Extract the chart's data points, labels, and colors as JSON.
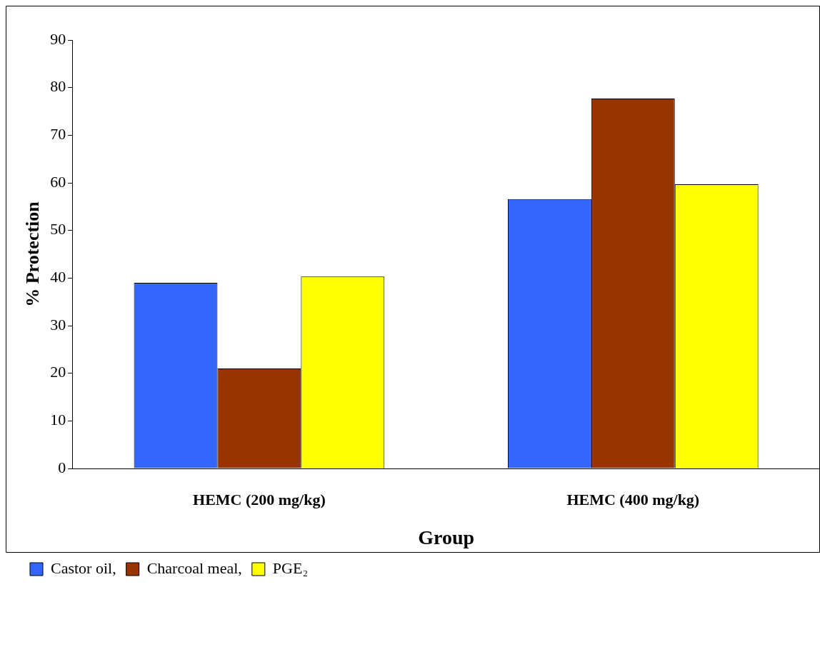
{
  "chart_data": {
    "type": "bar",
    "xlabel": "Group",
    "ylabel": "% Protection",
    "categories": [
      "HEMC (200 mg/kg)",
      "HEMC (400 mg/kg)"
    ],
    "series": [
      {
        "name": "Castor oil,",
        "color": "#3366ff",
        "values": [
          39,
          56.6
        ]
      },
      {
        "name": "Charcoal meal,",
        "color": "#993300",
        "values": [
          21,
          77.7
        ]
      },
      {
        "name": "PGE₂",
        "color": "#ffff00",
        "values": [
          40.3,
          59.7
        ]
      }
    ],
    "ylim": [
      0,
      90
    ],
    "yticks": [
      0,
      10,
      20,
      30,
      40,
      50,
      60,
      70,
      80,
      90
    ],
    "grid": false,
    "legend": "bottom left"
  }
}
